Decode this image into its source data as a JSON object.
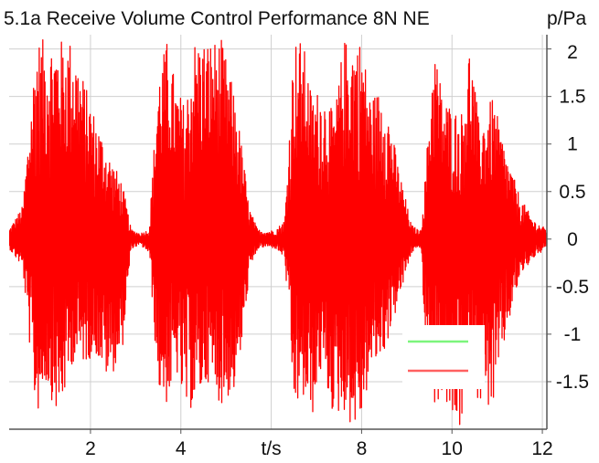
{
  "chart_data": {
    "type": "line",
    "title": "5.1a Receive Volume Control Performance 8N NE",
    "xlabel": "t/s",
    "ylabel": "p/Pa",
    "xlim": [
      0.2,
      12.1
    ],
    "ylim": [
      -2.0,
      2.15
    ],
    "x_ticks": [
      2,
      4,
      8,
      10,
      12
    ],
    "y_ticks": [
      2,
      1.5,
      1,
      0.5,
      0,
      -0.5,
      -1,
      -1.5
    ],
    "grid": true,
    "series_color": "#ff0000",
    "envelope": {
      "t": [
        0.2,
        0.5,
        0.8,
        1.0,
        1.3,
        1.6,
        1.9,
        2.1,
        2.4,
        2.7,
        2.9,
        3.1,
        3.3,
        3.5,
        3.7,
        3.9,
        4.1,
        4.3,
        4.6,
        4.9,
        5.2,
        5.4,
        5.5,
        5.7,
        5.9,
        6.1,
        6.3,
        6.5,
        6.7,
        6.9,
        7.1,
        7.4,
        7.6,
        7.8,
        8.0,
        8.2,
        8.5,
        8.8,
        9.1,
        9.3,
        9.4,
        9.6,
        9.8,
        10.0,
        10.2,
        10.4,
        10.6,
        10.9,
        11.2,
        11.5,
        11.8,
        12.1
      ],
      "upper": [
        0.1,
        0.35,
        2.1,
        2.1,
        2.1,
        2.1,
        1.6,
        1.3,
        0.9,
        0.6,
        0.1,
        0.06,
        0.1,
        1.75,
        2.1,
        1.6,
        1.4,
        2.1,
        2.1,
        2.1,
        1.5,
        0.8,
        0.35,
        0.1,
        0.08,
        0.1,
        0.2,
        2.1,
        2.1,
        1.5,
        1.6,
        1.3,
        2.1,
        2.1,
        2.1,
        1.5,
        1.6,
        0.8,
        0.15,
        0.08,
        0.6,
        2.1,
        1.5,
        1.4,
        1.3,
        2.1,
        1.2,
        1.5,
        0.9,
        0.45,
        0.2,
        0.1
      ],
      "lower": [
        -0.1,
        -0.3,
        -1.9,
        -1.5,
        -1.9,
        -1.3,
        -1.3,
        -1.2,
        -1.5,
        -1.2,
        -0.1,
        -0.06,
        -0.15,
        -1.6,
        -1.75,
        -1.4,
        -1.85,
        -1.75,
        -1.5,
        -1.75,
        -1.6,
        -1.0,
        -0.4,
        -0.1,
        -0.08,
        -0.1,
        -0.2,
        -1.8,
        -1.7,
        -1.9,
        -1.4,
        -1.9,
        -1.8,
        -2.0,
        -1.9,
        -1.4,
        -1.2,
        -0.7,
        -0.15,
        -0.08,
        -1.0,
        -1.8,
        -1.6,
        -2.0,
        -2.0,
        -1.5,
        -1.7,
        -1.8,
        -1.0,
        -0.4,
        -0.2,
        -0.1
      ]
    },
    "legend": {
      "position": "bottom-right",
      "entries": [
        {
          "color": "#7cf57c"
        },
        {
          "color": "#ff6060"
        }
      ]
    }
  }
}
